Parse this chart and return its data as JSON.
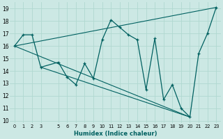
{
  "xlabel": "Humidex (Indice chaleur)",
  "bg_color": "#cce8e4",
  "grid_color": "#b0d8d0",
  "line_color": "#006060",
  "xlim": [
    -0.5,
    23.5
  ],
  "ylim": [
    9.8,
    19.5
  ],
  "yticks": [
    10,
    11,
    12,
    13,
    14,
    15,
    16,
    17,
    18,
    19
  ],
  "xtick_labels": [
    "0",
    "1",
    "2",
    "3",
    "5",
    "6",
    "7",
    "8",
    "9",
    "10",
    "11",
    "12",
    "13",
    "14",
    "15",
    "16",
    "17",
    "18",
    "19",
    "20",
    "21",
    "22",
    "23"
  ],
  "xtick_positions": [
    0,
    1,
    2,
    3,
    5,
    6,
    7,
    8,
    9,
    10,
    11,
    12,
    13,
    14,
    15,
    16,
    17,
    18,
    19,
    20,
    21,
    22,
    23
  ],
  "main_x": [
    0,
    1,
    2,
    3,
    5,
    6,
    7,
    8,
    9,
    10,
    11,
    12,
    13,
    14,
    15,
    16,
    17,
    18,
    19,
    20,
    21,
    22,
    23
  ],
  "main_y": [
    16.0,
    16.9,
    16.9,
    14.3,
    14.7,
    13.5,
    12.9,
    14.6,
    13.4,
    16.5,
    18.1,
    17.5,
    16.9,
    16.5,
    12.5,
    16.6,
    11.7,
    12.9,
    11.0,
    10.3,
    15.4,
    17.0,
    19.1
  ],
  "trend1_x": [
    0,
    23
  ],
  "trend1_y": [
    16.0,
    19.1
  ],
  "trend2_x": [
    0,
    20
  ],
  "trend2_y": [
    16.0,
    10.3
  ],
  "trend3_x": [
    3,
    20
  ],
  "trend3_y": [
    14.3,
    10.3
  ]
}
